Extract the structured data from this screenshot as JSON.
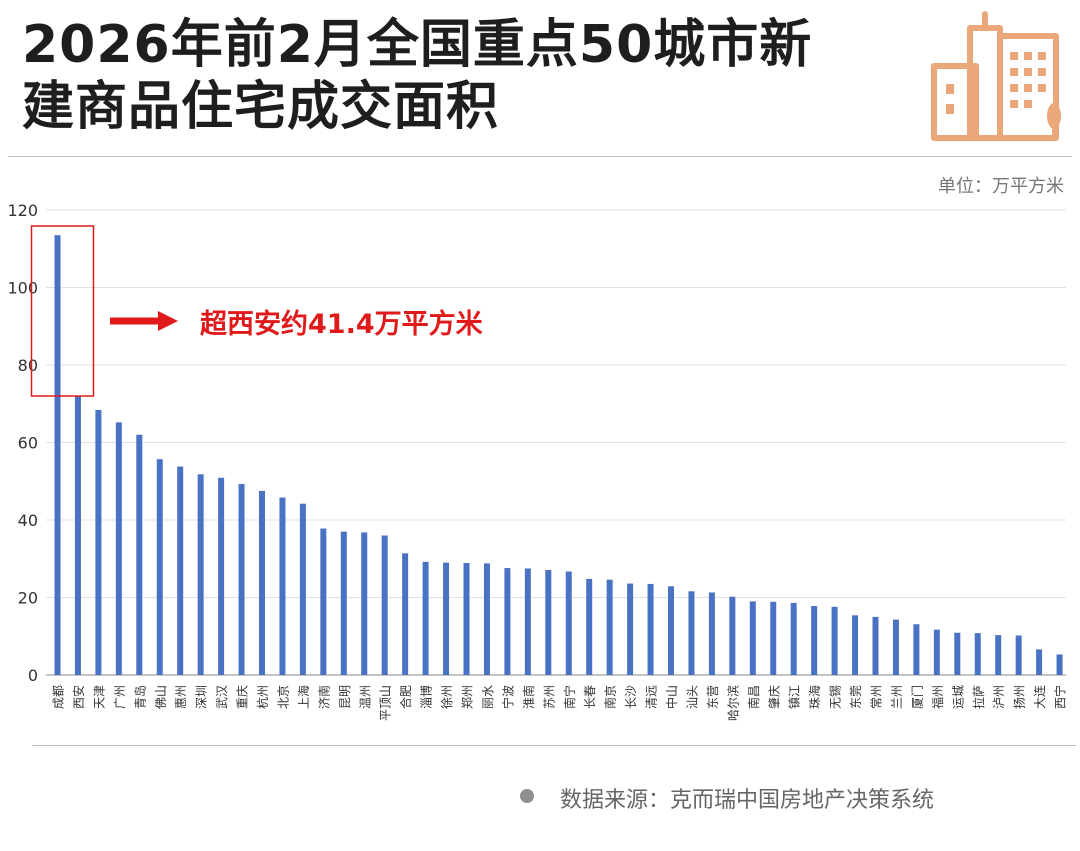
{
  "title": {
    "line1": "2026年前2月全国重点50城市新",
    "line2": "建商品住宅成交面积"
  },
  "unit_label": "单位：万平方米",
  "callout": "超西安约41.4万平方米",
  "source": "数据来源：克而瑞中国房地产决策系统",
  "colors": {
    "bar": "#4a72c4",
    "callout": "#e01a1a",
    "logo": "#e9a77a",
    "grid": "#e0e0e0",
    "axis": "#8a8a8a"
  },
  "icons": {
    "logo": "building-icon",
    "callout_arrow": "arrow-right-icon"
  },
  "chart_data": {
    "type": "bar",
    "title": "2026年前2月全国重点50城市新建商品住宅成交面积",
    "xlabel": "",
    "ylabel": "",
    "unit": "万平方米",
    "ylim": [
      0,
      120
    ],
    "yticks": [
      0,
      20,
      40,
      60,
      80,
      100,
      120
    ],
    "grid": true,
    "categories": [
      "成都",
      "西安",
      "天津",
      "广州",
      "青岛",
      "佛山",
      "惠州",
      "深圳",
      "武汉",
      "重庆",
      "杭州",
      "北京",
      "上海",
      "济南",
      "昆明",
      "温州",
      "平顶山",
      "合肥",
      "淄博",
      "徐州",
      "郑州",
      "丽水",
      "宁波",
      "淮南",
      "苏州",
      "南宁",
      "长春",
      "南京",
      "长沙",
      "清远",
      "中山",
      "汕头",
      "东营",
      "哈尔滨",
      "南昌",
      "肇庆",
      "镇江",
      "珠海",
      "无锡",
      "东莞",
      "常州",
      "兰州",
      "厦门",
      "福州",
      "运城",
      "拉萨",
      "泸州",
      "扬州",
      "大连",
      "西宁"
    ],
    "values": [
      113.5,
      72.1,
      68.4,
      65.2,
      62.0,
      55.7,
      53.8,
      51.8,
      50.9,
      49.3,
      47.5,
      45.8,
      44.2,
      37.8,
      37.0,
      36.8,
      36.0,
      31.4,
      29.2,
      29.0,
      28.9,
      28.8,
      27.6,
      27.5,
      27.1,
      26.7,
      24.8,
      24.6,
      23.6,
      23.5,
      22.9,
      21.6,
      21.3,
      20.2,
      19.0,
      18.9,
      18.6,
      17.8,
      17.6,
      15.4,
      15.0,
      14.3,
      13.1,
      11.7,
      10.9,
      10.8,
      10.3,
      10.2,
      6.6,
      5.3
    ],
    "highlight": {
      "category": "成都",
      "note": "超西安约41.4万平方米"
    }
  }
}
